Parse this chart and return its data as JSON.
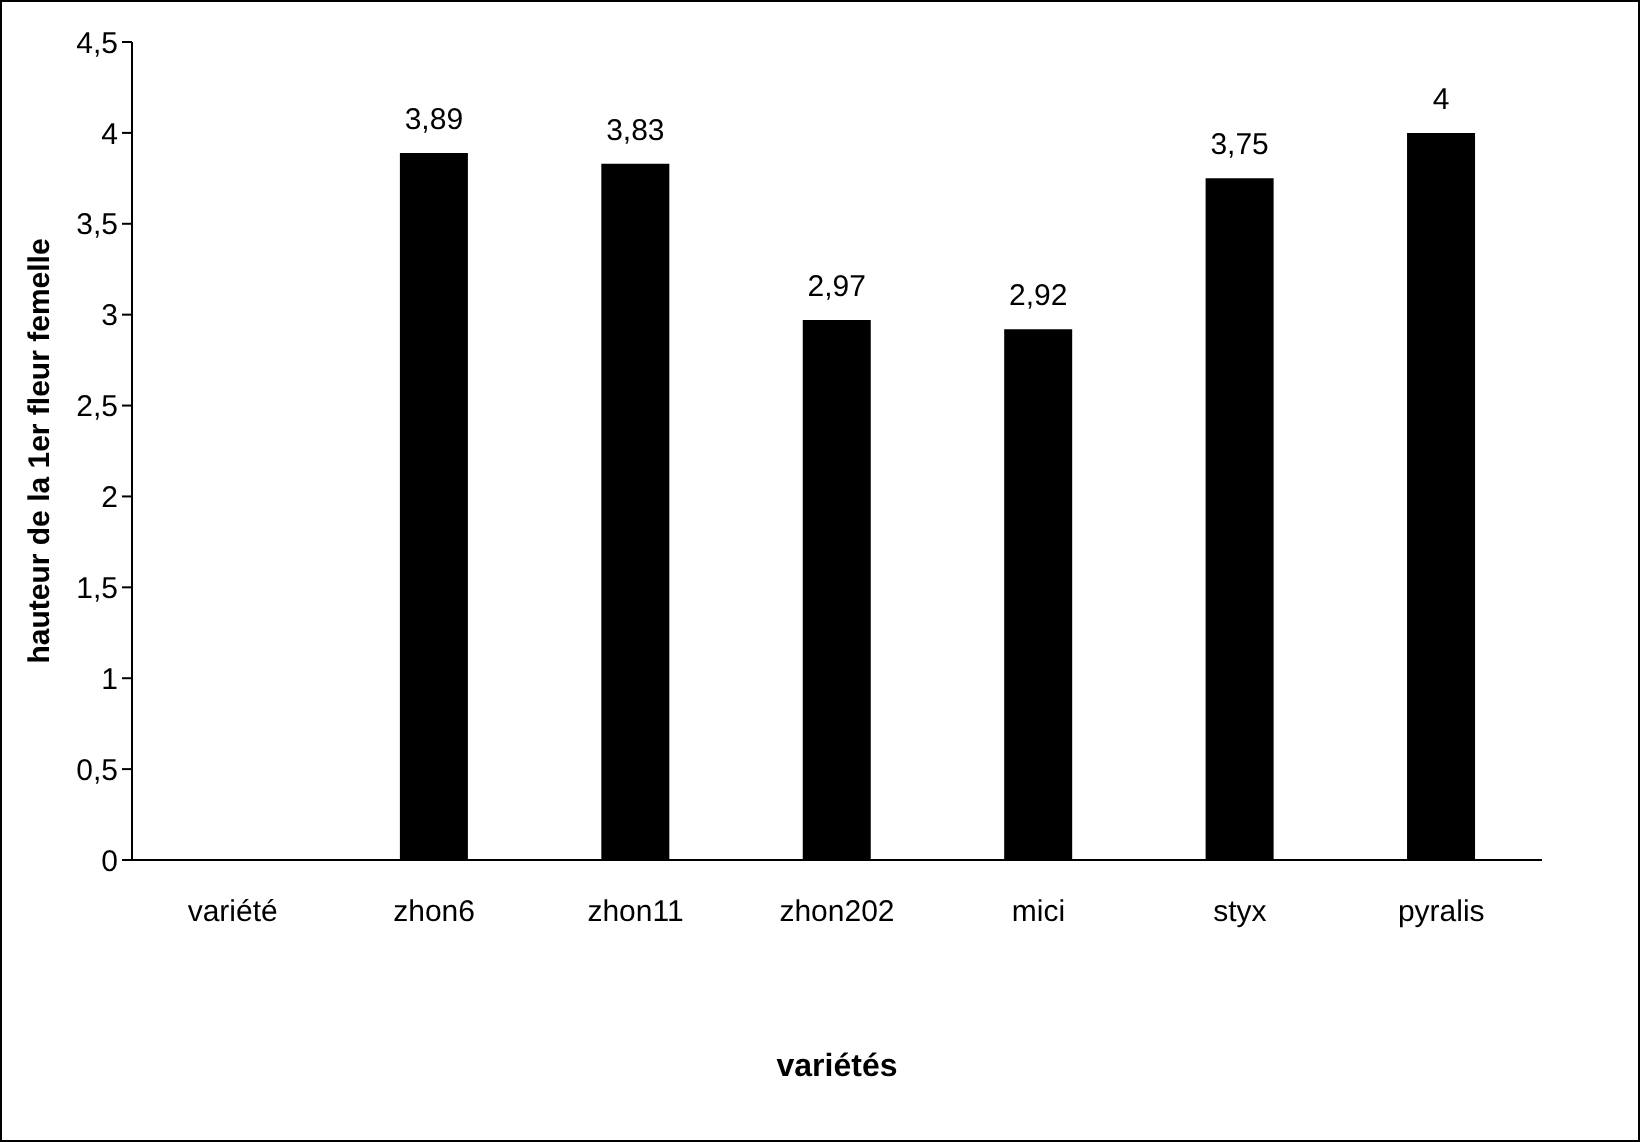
{
  "chart_data": {
    "type": "bar",
    "xlabel": "variétés",
    "ylabel": "hauteur de la 1er fleur femelle",
    "categories": [
      "variété",
      "zhon6",
      "zhon11",
      "zhon202",
      "mici",
      "styx",
      "pyralis"
    ],
    "values": [
      null,
      3.89,
      3.83,
      2.97,
      2.92,
      3.75,
      4
    ],
    "value_labels": [
      null,
      "3,89",
      "3,83",
      "2,97",
      "2,92",
      "3,75",
      "4"
    ],
    "color": "#000000",
    "ylim": [
      0,
      4.5
    ],
    "yticks": [
      0,
      {
        "value": 0.5,
        "label": "0,5"
      },
      1,
      {
        "value": 1.5,
        "label": "1,5"
      },
      2,
      {
        "value": 2.5,
        "label": "2,5"
      },
      3,
      {
        "value": 3.5,
        "label": "3,5"
      },
      4,
      {
        "value": 4.5,
        "label": "4,5"
      }
    ],
    "grid": false,
    "legend": false
  }
}
